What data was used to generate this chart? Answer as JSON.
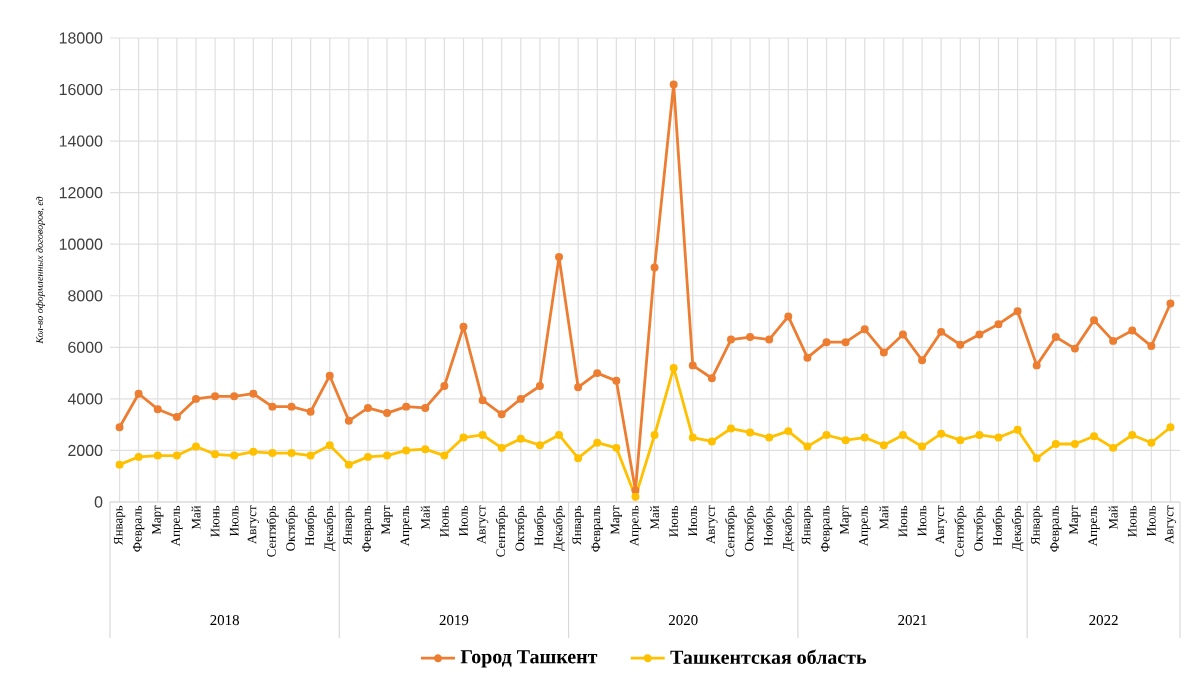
{
  "chart_data": {
    "type": "line",
    "ylabel": "Кол-во оформленных договоров, ед",
    "categories": [
      "Январь",
      "Февраль",
      "Март",
      "Апрель",
      "Май",
      "Июнь",
      "Июль",
      "Август",
      "Сентябрь",
      "Октябрь",
      "Ноябрь",
      "Декабрь",
      "Январь",
      "Февраль",
      "Март",
      "Апрель",
      "Май",
      "Июнь",
      "Июль",
      "Август",
      "Сентябрь",
      "Октябрь",
      "Ноябрь",
      "Декабрь",
      "Январь",
      "Февраль",
      "Март",
      "Апрель",
      "Май",
      "Июнь",
      "Июль",
      "Август",
      "Сентябрь",
      "Октябрь",
      "Ноябрь",
      "Декабрь",
      "Январь",
      "Февраль",
      "Март",
      "Апрель",
      "Май",
      "Июнь",
      "Июль",
      "Август",
      "Сентябрь",
      "Октябрь",
      "Ноябрь",
      "Декабрь",
      "Январь",
      "Февраль",
      "Март",
      "Апрель",
      "Май",
      "Июнь",
      "Июль",
      "Август"
    ],
    "series": [
      {
        "name": "Город Ташкент",
        "color": "#ed7d31",
        "values": [
          2900,
          4200,
          3600,
          3300,
          4000,
          4100,
          4100,
          4200,
          3700,
          3700,
          3500,
          4900,
          3150,
          3650,
          3450,
          3700,
          3650,
          4500,
          6800,
          3950,
          3400,
          4000,
          4500,
          9500,
          4450,
          5000,
          4700,
          450,
          9100,
          16200,
          5300,
          4800,
          6300,
          6400,
          6300,
          7200,
          5600,
          6200,
          6200,
          6700,
          5800,
          6500,
          5500,
          6600,
          6100,
          6500,
          6900,
          7400,
          5300,
          6400,
          5950,
          7050,
          6250,
          6650,
          6050,
          7700
        ]
      },
      {
        "name": "Ташкентская область",
        "color": "#ffc000",
        "values": [
          1450,
          1750,
          1800,
          1800,
          2150,
          1850,
          1800,
          1950,
          1900,
          1900,
          1800,
          2200,
          1450,
          1750,
          1800,
          2000,
          2050,
          1800,
          2500,
          2600,
          2100,
          2450,
          2200,
          2600,
          1700,
          2300,
          2100,
          200,
          2600,
          5200,
          2500,
          2350,
          2850,
          2700,
          2500,
          2750,
          2150,
          2600,
          2400,
          2500,
          2200,
          2600,
          2150,
          2650,
          2400,
          2600,
          2500,
          2800,
          1700,
          2250,
          2250,
          2550,
          2100,
          2600,
          2300,
          2900
        ]
      }
    ],
    "annotations": [
      "2018",
      "2019",
      "2020",
      "2021",
      "2022"
    ],
    "ylim": [
      0,
      18000
    ],
    "yticks": [
      0,
      2000,
      4000,
      6000,
      8000,
      10000,
      12000,
      14000,
      16000,
      18000
    ],
    "grid": true,
    "legend": "bottom",
    "marker": "circle"
  }
}
